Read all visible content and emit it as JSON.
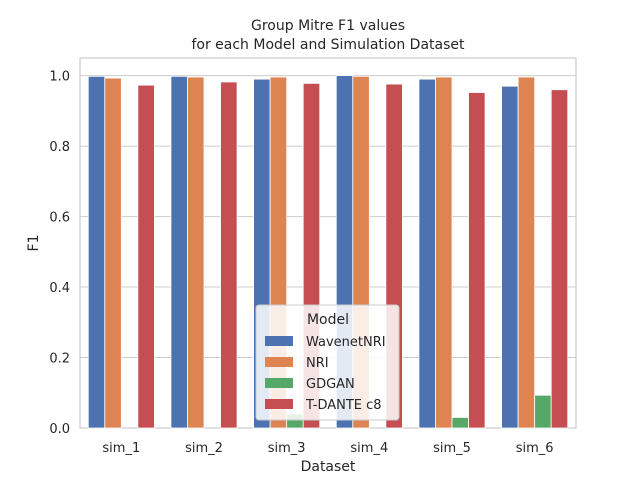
{
  "chart_data": {
    "type": "bar",
    "title_line1": "Group Mitre F1 values",
    "title_line2": "for each Model and Simulation Dataset",
    "xlabel": "Dataset",
    "ylabel": "F1",
    "ylim": [
      0,
      1.05
    ],
    "yticks": [
      "0.0",
      "0.2",
      "0.4",
      "0.6",
      "0.8",
      "1.0"
    ],
    "categories": [
      "sim_1",
      "sim_2",
      "sim_3",
      "sim_4",
      "sim_5",
      "sim_6"
    ],
    "grid": true,
    "legend": {
      "title": "Model",
      "placement": "lower-center"
    },
    "series": [
      {
        "name": "WavenetNRI",
        "color": "#4c72b0",
        "values": [
          0.998,
          0.998,
          0.99,
          1.0,
          0.99,
          0.97
        ]
      },
      {
        "name": "NRI",
        "color": "#dd8452",
        "values": [
          0.993,
          0.996,
          0.996,
          0.998,
          0.996,
          0.996
        ]
      },
      {
        "name": "GDGAN",
        "color": "#55a868",
        "values": [
          0.0,
          0.0,
          0.04,
          0.0,
          0.03,
          0.093
        ]
      },
      {
        "name": "T-DANTE c8",
        "color": "#c44e52",
        "values": [
          0.973,
          0.982,
          0.978,
          0.976,
          0.952,
          0.96
        ]
      }
    ]
  }
}
